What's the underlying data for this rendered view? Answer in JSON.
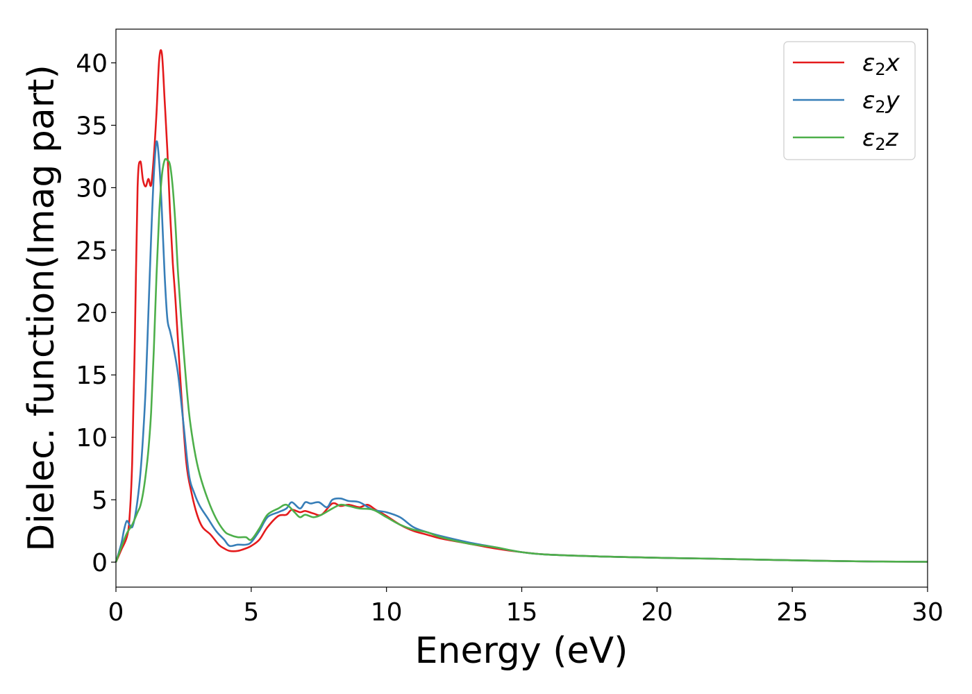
{
  "chart_data": {
    "type": "line",
    "title": "",
    "xlabel": "Energy (eV)",
    "ylabel": "Dielec. function(Imag part)",
    "xlim": [
      0,
      30
    ],
    "ylim": [
      -2,
      42.7
    ],
    "xticks": [
      0,
      5,
      10,
      15,
      20,
      25,
      30
    ],
    "yticks": [
      0,
      5,
      10,
      15,
      20,
      25,
      30,
      35,
      40
    ],
    "grid": false,
    "legend_position": "top-right",
    "series": [
      {
        "name": "ε2x",
        "legend_base": "ε",
        "legend_sub": "2",
        "legend_var": "x",
        "color": "#e41a1c",
        "x": [
          0,
          0.2,
          0.4,
          0.5,
          0.6,
          0.7,
          0.8,
          0.9,
          1.0,
          1.1,
          1.2,
          1.3,
          1.4,
          1.5,
          1.6,
          1.7,
          1.8,
          1.9,
          2.0,
          2.1,
          2.2,
          2.4,
          2.6,
          2.8,
          3.0,
          3.2,
          3.5,
          3.8,
          4.0,
          4.2,
          4.5,
          4.8,
          5.0,
          5.3,
          5.6,
          6.0,
          6.3,
          6.5,
          6.8,
          7.0,
          7.3,
          7.6,
          8.0,
          8.3,
          8.6,
          9.0,
          9.3,
          9.6,
          10.0,
          10.5,
          11.0,
          11.5,
          12.0,
          13.0,
          14.0,
          15.0,
          16.0,
          18.0,
          20.0,
          22.0,
          25.0,
          28.0,
          30.0
        ],
        "y": [
          0,
          1.0,
          2.0,
          3.5,
          8,
          18,
          30,
          32.1,
          30.6,
          30.1,
          30.7,
          30.2,
          32.5,
          36,
          40.3,
          40.7,
          37,
          33,
          28,
          24,
          21,
          14,
          8,
          5.5,
          3.8,
          2.8,
          2.2,
          1.4,
          1.1,
          0.9,
          0.9,
          1.1,
          1.3,
          1.8,
          2.8,
          3.7,
          3.8,
          4.2,
          4.0,
          4.1,
          3.9,
          3.8,
          4.7,
          4.5,
          4.6,
          4.4,
          4.6,
          4.2,
          3.7,
          3.0,
          2.5,
          2.2,
          1.9,
          1.5,
          1.1,
          0.8,
          0.6,
          0.45,
          0.35,
          0.28,
          0.15,
          0.05,
          0.03
        ]
      },
      {
        "name": "ε2y",
        "legend_base": "ε",
        "legend_sub": "2",
        "legend_var": "y",
        "color": "#377eb8",
        "x": [
          0,
          0.2,
          0.3,
          0.4,
          0.5,
          0.6,
          0.7,
          0.8,
          0.9,
          1.0,
          1.1,
          1.2,
          1.3,
          1.4,
          1.5,
          1.6,
          1.7,
          1.8,
          1.9,
          2.0,
          2.1,
          2.3,
          2.5,
          2.7,
          2.9,
          3.1,
          3.4,
          3.7,
          4.0,
          4.2,
          4.5,
          4.8,
          5.0,
          5.3,
          5.6,
          6.0,
          6.3,
          6.5,
          6.8,
          7.0,
          7.2,
          7.5,
          7.8,
          8.0,
          8.3,
          8.6,
          9.0,
          9.5,
          10.0,
          10.5,
          11.0,
          11.5,
          12.0,
          13.0,
          14.0,
          15.0,
          16.0,
          18.0,
          20.0,
          22.0,
          25.0,
          28.0,
          30.0
        ],
        "y": [
          0,
          1.5,
          2.6,
          3.3,
          3.0,
          2.8,
          3.6,
          5,
          7,
          10,
          14,
          20,
          26,
          31,
          33.7,
          32,
          28,
          23,
          19.5,
          18.5,
          17.5,
          15,
          11,
          7,
          5.5,
          4.5,
          3.5,
          2.5,
          1.8,
          1.3,
          1.4,
          1.4,
          1.6,
          2.5,
          3.6,
          4.0,
          4.3,
          4.8,
          4.3,
          4.8,
          4.7,
          4.8,
          4.4,
          5.0,
          5.1,
          4.9,
          4.8,
          4.2,
          4.0,
          3.6,
          2.8,
          2.4,
          2.1,
          1.6,
          1.2,
          0.8,
          0.6,
          0.45,
          0.35,
          0.28,
          0.15,
          0.05,
          0.03
        ]
      },
      {
        "name": "ε2z",
        "legend_base": "ε",
        "legend_sub": "2",
        "legend_var": "z",
        "color": "#4daf4a",
        "x": [
          0,
          0.2,
          0.4,
          0.6,
          0.8,
          0.9,
          1.0,
          1.1,
          1.2,
          1.3,
          1.4,
          1.5,
          1.6,
          1.7,
          1.8,
          1.9,
          2.0,
          2.1,
          2.2,
          2.3,
          2.5,
          2.7,
          2.9,
          3.1,
          3.4,
          3.7,
          4.0,
          4.2,
          4.5,
          4.8,
          5.0,
          5.3,
          5.6,
          6.0,
          6.3,
          6.6,
          6.8,
          7.0,
          7.3,
          7.6,
          8.0,
          8.3,
          8.6,
          9.0,
          9.5,
          10.0,
          10.5,
          11.0,
          11.5,
          12.0,
          13.0,
          14.0,
          15.0,
          16.0,
          18.0,
          20.0,
          22.0,
          25.0,
          28.0,
          30.0
        ],
        "y": [
          0,
          1.2,
          2.3,
          3.0,
          4.0,
          4.5,
          5.5,
          7,
          9,
          12,
          17,
          23,
          28,
          31,
          32.2,
          32.2,
          31.8,
          30,
          27,
          23,
          17,
          12,
          9,
          7,
          5,
          3.5,
          2.5,
          2.2,
          2.0,
          2.0,
          1.8,
          2.7,
          3.8,
          4.3,
          4.6,
          4.0,
          3.6,
          3.8,
          3.6,
          3.8,
          4.3,
          4.6,
          4.5,
          4.3,
          4.2,
          3.6,
          3.0,
          2.6,
          2.4,
          2.0,
          1.5,
          1.2,
          0.8,
          0.6,
          0.45,
          0.35,
          0.28,
          0.15,
          0.05,
          0.03
        ]
      }
    ]
  }
}
